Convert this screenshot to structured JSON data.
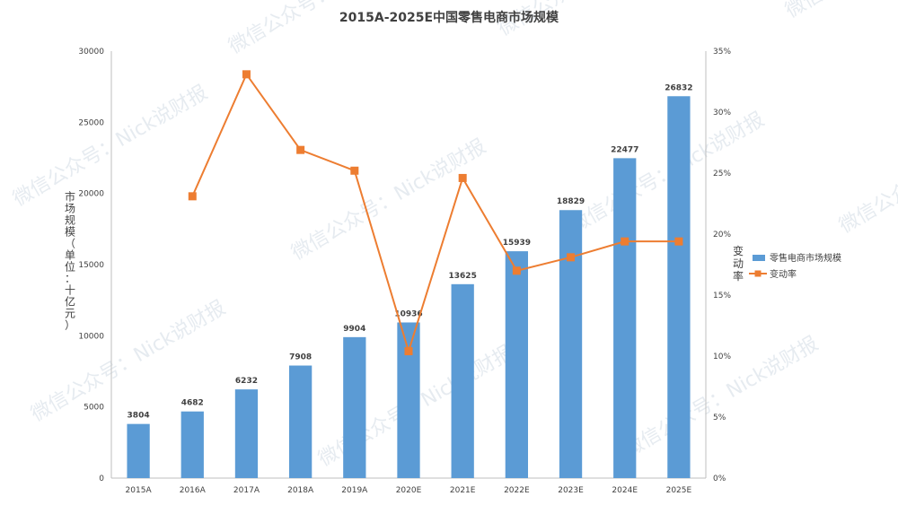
{
  "watermark": "微信公众号：Nick说财报",
  "chart_data": {
    "type": "bar",
    "title": "2015A-2025E中国零售电商市场规模",
    "categories": [
      "2015A",
      "2016A",
      "2017A",
      "2018A",
      "2019A",
      "2020E",
      "2021E",
      "2022E",
      "2023E",
      "2024E",
      "2025E"
    ],
    "ylabel": "市场规模（单位：十亿元）",
    "y2label": "变动率",
    "ylim": [
      0,
      30000
    ],
    "yticks": [
      0,
      5000,
      10000,
      15000,
      20000,
      25000,
      30000
    ],
    "y2lim": [
      0,
      35
    ],
    "y2ticks": [
      "0%",
      "5%",
      "10%",
      "15%",
      "20%",
      "25%",
      "30%",
      "35%"
    ],
    "legend_position": "right",
    "grid": false,
    "series": [
      {
        "name": "零售电商市场规模",
        "type": "bar",
        "axis": "left",
        "color": "#5b9bd5",
        "values": [
          3804,
          4682,
          6232,
          7908,
          9904,
          10936,
          13625,
          15939,
          18829,
          22477,
          26832
        ]
      },
      {
        "name": "变动率",
        "type": "line",
        "axis": "right",
        "color": "#ed7d31",
        "values": [
          null,
          23.1,
          33.1,
          26.9,
          25.2,
          10.4,
          24.6,
          17.0,
          18.1,
          19.4,
          19.4
        ]
      }
    ]
  }
}
